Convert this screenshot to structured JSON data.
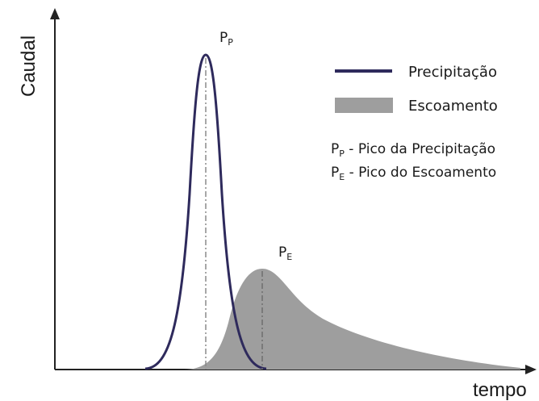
{
  "diagram": {
    "y_axis_label": "Caudal",
    "x_axis_label": "tempo",
    "peak_precip": {
      "main": "P",
      "sub": "P"
    },
    "peak_runoff": {
      "main": "P",
      "sub": "E"
    },
    "legend": {
      "precip_label": "Precipitação",
      "runoff_label": "Escoamento"
    },
    "notes": [
      {
        "main": "P",
        "sub": "P",
        "text": " - Pico da Precipitação"
      },
      {
        "main": "P",
        "sub": "E",
        "text": " - Pico do Escoamento"
      }
    ],
    "colors": {
      "precip_line": "#2e2a5c",
      "runoff_fill": "#9e9e9e",
      "axis": "#222222",
      "peak_marker": "#8a8a8a"
    }
  }
}
